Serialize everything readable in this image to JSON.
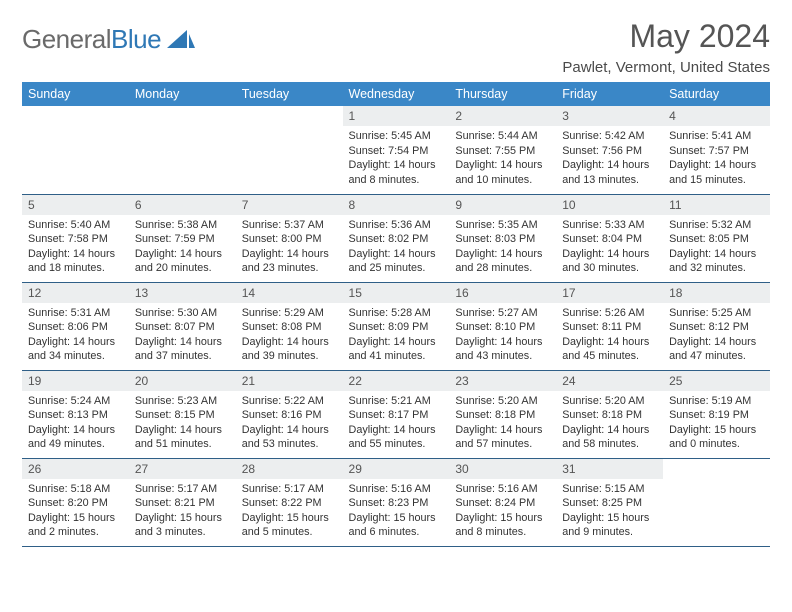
{
  "branding": {
    "part1": "General",
    "part2": "Blue"
  },
  "title": "May 2024",
  "location": "Pawlet, Vermont, United States",
  "colors": {
    "header_bg": "#3a87c7",
    "row_border": "#2f5f87",
    "daynum_bg": "#eceeef",
    "logo_gray": "#6a6a6a",
    "logo_blue": "#2f78b5"
  },
  "dayHeaders": [
    "Sunday",
    "Monday",
    "Tuesday",
    "Wednesday",
    "Thursday",
    "Friday",
    "Saturday"
  ],
  "weeks": [
    [
      null,
      null,
      null,
      {
        "n": "1",
        "sr": "5:45 AM",
        "ss": "7:54 PM",
        "dl": "14 hours and 8 minutes."
      },
      {
        "n": "2",
        "sr": "5:44 AM",
        "ss": "7:55 PM",
        "dl": "14 hours and 10 minutes."
      },
      {
        "n": "3",
        "sr": "5:42 AM",
        "ss": "7:56 PM",
        "dl": "14 hours and 13 minutes."
      },
      {
        "n": "4",
        "sr": "5:41 AM",
        "ss": "7:57 PM",
        "dl": "14 hours and 15 minutes."
      }
    ],
    [
      {
        "n": "5",
        "sr": "5:40 AM",
        "ss": "7:58 PM",
        "dl": "14 hours and 18 minutes."
      },
      {
        "n": "6",
        "sr": "5:38 AM",
        "ss": "7:59 PM",
        "dl": "14 hours and 20 minutes."
      },
      {
        "n": "7",
        "sr": "5:37 AM",
        "ss": "8:00 PM",
        "dl": "14 hours and 23 minutes."
      },
      {
        "n": "8",
        "sr": "5:36 AM",
        "ss": "8:02 PM",
        "dl": "14 hours and 25 minutes."
      },
      {
        "n": "9",
        "sr": "5:35 AM",
        "ss": "8:03 PM",
        "dl": "14 hours and 28 minutes."
      },
      {
        "n": "10",
        "sr": "5:33 AM",
        "ss": "8:04 PM",
        "dl": "14 hours and 30 minutes."
      },
      {
        "n": "11",
        "sr": "5:32 AM",
        "ss": "8:05 PM",
        "dl": "14 hours and 32 minutes."
      }
    ],
    [
      {
        "n": "12",
        "sr": "5:31 AM",
        "ss": "8:06 PM",
        "dl": "14 hours and 34 minutes."
      },
      {
        "n": "13",
        "sr": "5:30 AM",
        "ss": "8:07 PM",
        "dl": "14 hours and 37 minutes."
      },
      {
        "n": "14",
        "sr": "5:29 AM",
        "ss": "8:08 PM",
        "dl": "14 hours and 39 minutes."
      },
      {
        "n": "15",
        "sr": "5:28 AM",
        "ss": "8:09 PM",
        "dl": "14 hours and 41 minutes."
      },
      {
        "n": "16",
        "sr": "5:27 AM",
        "ss": "8:10 PM",
        "dl": "14 hours and 43 minutes."
      },
      {
        "n": "17",
        "sr": "5:26 AM",
        "ss": "8:11 PM",
        "dl": "14 hours and 45 minutes."
      },
      {
        "n": "18",
        "sr": "5:25 AM",
        "ss": "8:12 PM",
        "dl": "14 hours and 47 minutes."
      }
    ],
    [
      {
        "n": "19",
        "sr": "5:24 AM",
        "ss": "8:13 PM",
        "dl": "14 hours and 49 minutes."
      },
      {
        "n": "20",
        "sr": "5:23 AM",
        "ss": "8:15 PM",
        "dl": "14 hours and 51 minutes."
      },
      {
        "n": "21",
        "sr": "5:22 AM",
        "ss": "8:16 PM",
        "dl": "14 hours and 53 minutes."
      },
      {
        "n": "22",
        "sr": "5:21 AM",
        "ss": "8:17 PM",
        "dl": "14 hours and 55 minutes."
      },
      {
        "n": "23",
        "sr": "5:20 AM",
        "ss": "8:18 PM",
        "dl": "14 hours and 57 minutes."
      },
      {
        "n": "24",
        "sr": "5:20 AM",
        "ss": "8:18 PM",
        "dl": "14 hours and 58 minutes."
      },
      {
        "n": "25",
        "sr": "5:19 AM",
        "ss": "8:19 PM",
        "dl": "15 hours and 0 minutes."
      }
    ],
    [
      {
        "n": "26",
        "sr": "5:18 AM",
        "ss": "8:20 PM",
        "dl": "15 hours and 2 minutes."
      },
      {
        "n": "27",
        "sr": "5:17 AM",
        "ss": "8:21 PM",
        "dl": "15 hours and 3 minutes."
      },
      {
        "n": "28",
        "sr": "5:17 AM",
        "ss": "8:22 PM",
        "dl": "15 hours and 5 minutes."
      },
      {
        "n": "29",
        "sr": "5:16 AM",
        "ss": "8:23 PM",
        "dl": "15 hours and 6 minutes."
      },
      {
        "n": "30",
        "sr": "5:16 AM",
        "ss": "8:24 PM",
        "dl": "15 hours and 8 minutes."
      },
      {
        "n": "31",
        "sr": "5:15 AM",
        "ss": "8:25 PM",
        "dl": "15 hours and 9 minutes."
      },
      null
    ]
  ],
  "labels": {
    "sunrise": "Sunrise:",
    "sunset": "Sunset:",
    "daylight": "Daylight:"
  }
}
